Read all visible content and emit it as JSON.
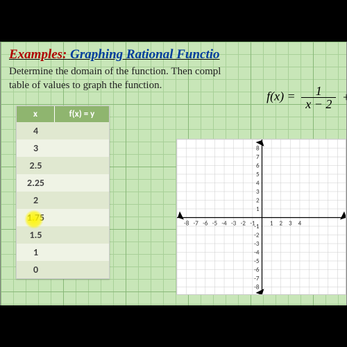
{
  "title": {
    "examples": "Examples:",
    "main": "Graphing Rational Functio"
  },
  "instruction": {
    "line1": "Determine the domain of the function.   Then compl",
    "line2": "table of values to graph the function."
  },
  "formula": {
    "lhs": "f(x) =",
    "num": "1",
    "den": "x − 2",
    "tail": "+"
  },
  "table": {
    "headers": {
      "x": "x",
      "y": "f(x)  =  y"
    },
    "rows": [
      {
        "x": "4",
        "y": ""
      },
      {
        "x": "3",
        "y": ""
      },
      {
        "x": "2.5",
        "y": ""
      },
      {
        "x": "2.25",
        "y": ""
      },
      {
        "x": "2",
        "y": ""
      },
      {
        "x": "1.75",
        "y": ""
      },
      {
        "x": "1.5",
        "y": ""
      },
      {
        "x": "1",
        "y": ""
      },
      {
        "x": "0",
        "y": ""
      }
    ],
    "alt_color": "#e0e8d0",
    "plain_color": "#eff3e5",
    "header_bg": "#8fb56f"
  },
  "chart": {
    "type": "cartesian-grid",
    "xlim": [
      -9,
      9
    ],
    "ylim": [
      -9,
      9
    ],
    "xticks": [
      -8,
      -7,
      -6,
      -5,
      -4,
      -3,
      -2,
      -1,
      1,
      2,
      3,
      4
    ],
    "yticks": [
      -8,
      -7,
      -6,
      -5,
      -4,
      -3,
      -2,
      -1,
      1,
      2,
      3,
      4,
      5,
      6,
      7,
      8
    ],
    "grid_color": "#cccccc",
    "axis_color": "#000000",
    "background": "#ffffff",
    "label_fontsize": 9
  },
  "colors": {
    "slide_bg": "#c8e6b8",
    "grid_minor": "#a8d098",
    "grid_major": "#88b878",
    "title_red": "#b00000",
    "title_blue": "#003c9c",
    "highlight": "#fff500"
  }
}
